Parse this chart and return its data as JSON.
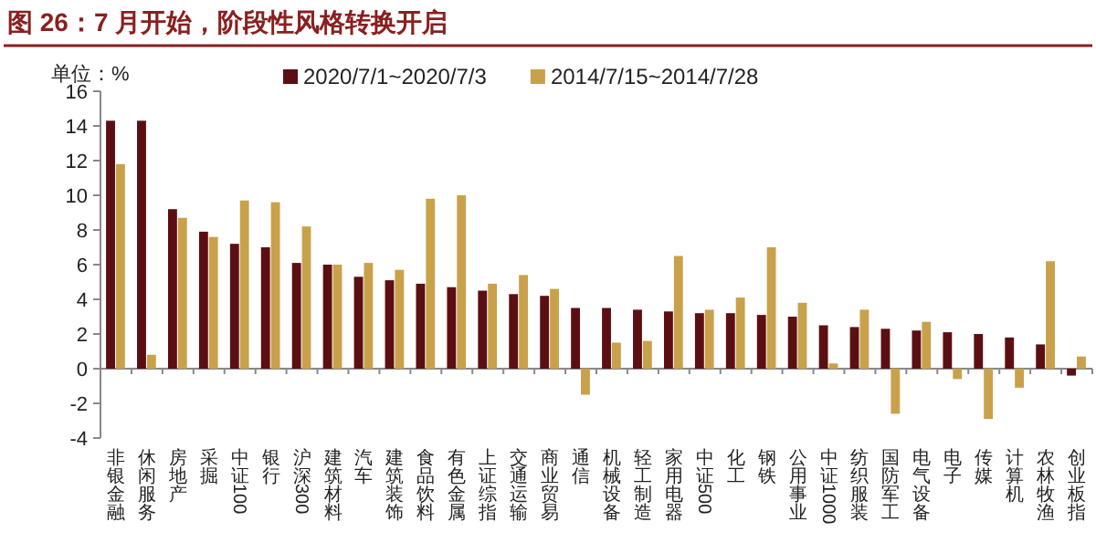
{
  "chart_data": {
    "type": "bar",
    "title": "图 26：7 月开始，阶段性风格转换开启",
    "annotations": [
      "单位：%"
    ],
    "categories": [
      "非银金融",
      "休闲服务",
      "房地产",
      "采掘",
      "中证100",
      "银行",
      "沪深300",
      "建筑材料",
      "汽车",
      "建筑装饰",
      "食品饮料",
      "有色金属",
      "上证综指",
      "交通运输",
      "商业贸易",
      "通信",
      "机械设备",
      "轻工制造",
      "家用电器",
      "中证500",
      "化工",
      "钢铁",
      "公用事业",
      "中证1000",
      "纺织服装",
      "国防军工",
      "电气设备",
      "电子",
      "传媒",
      "计算机",
      "农林牧渔",
      "创业板指"
    ],
    "series": [
      {
        "name": "2020/7/1~2020/7/3",
        "color": "#5c0f12",
        "values": [
          14.3,
          14.3,
          9.2,
          7.9,
          7.2,
          7.0,
          6.1,
          6.0,
          5.3,
          5.1,
          4.9,
          4.7,
          4.5,
          4.3,
          4.2,
          3.5,
          3.5,
          3.4,
          3.3,
          3.2,
          3.2,
          3.1,
          3.0,
          2.5,
          2.4,
          2.3,
          2.2,
          2.1,
          2.0,
          1.8,
          1.4,
          -0.4
        ]
      },
      {
        "name": "2014/7/15~2014/7/28",
        "color": "#c9a14a",
        "values": [
          11.8,
          0.8,
          8.7,
          7.6,
          9.7,
          9.6,
          8.2,
          6.0,
          6.1,
          5.7,
          9.8,
          10.0,
          4.9,
          5.4,
          4.6,
          -1.5,
          1.5,
          1.6,
          6.5,
          3.4,
          4.1,
          7.0,
          3.8,
          0.3,
          3.4,
          -2.6,
          2.7,
          -0.6,
          -2.9,
          -1.1,
          6.2,
          0.7
        ]
      }
    ],
    "ylim": [
      -4,
      16
    ],
    "yticks": [
      -4,
      -2,
      0,
      2,
      4,
      6,
      8,
      10,
      12,
      14,
      16
    ],
    "legend": "top"
  }
}
